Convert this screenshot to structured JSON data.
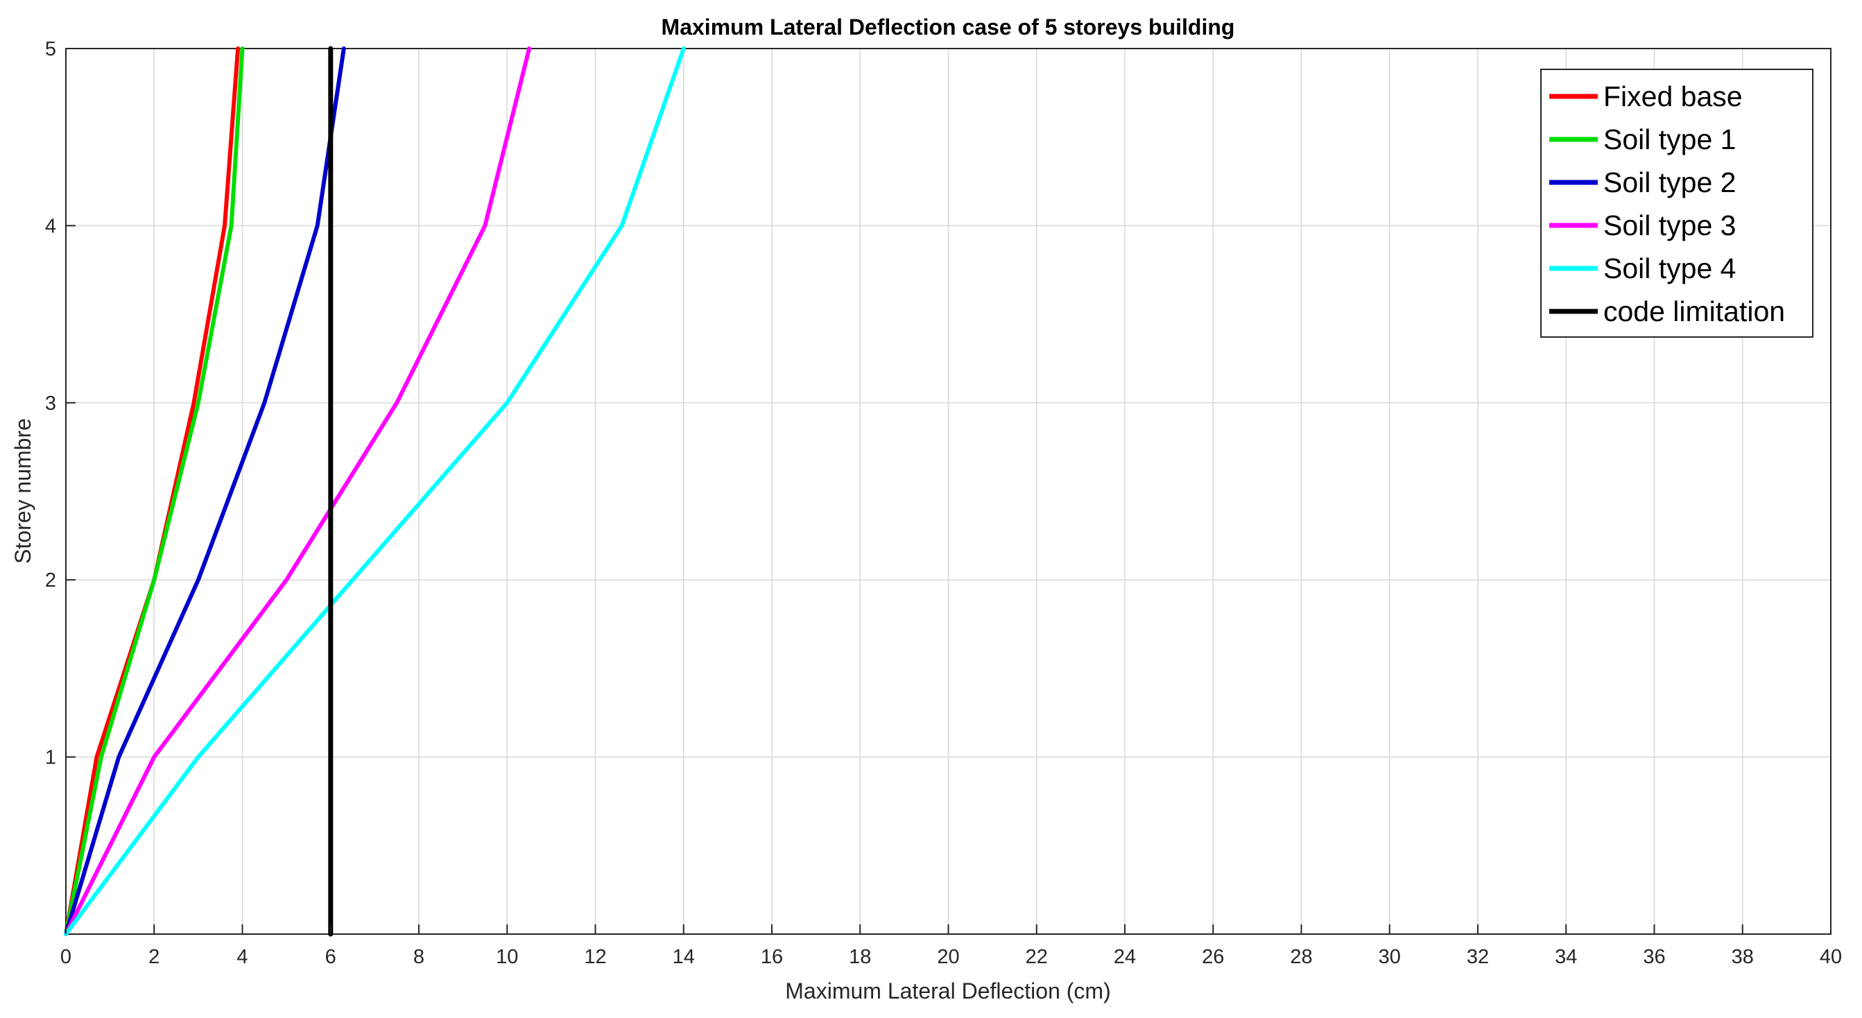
{
  "chart_data": {
    "type": "line",
    "title": "Maximum Lateral Deflection case of 5 storeys building",
    "xlabel": "Maximum Lateral Deflection (cm)",
    "ylabel": "Storey numbre",
    "xlim": [
      0,
      40
    ],
    "ylim": [
      0,
      5
    ],
    "x_ticks": [
      0,
      2,
      4,
      6,
      8,
      10,
      12,
      14,
      16,
      18,
      20,
      22,
      24,
      26,
      28,
      30,
      32,
      34,
      36,
      38,
      40
    ],
    "y_ticks": [
      1,
      2,
      3,
      4,
      5
    ],
    "grid": true,
    "legend_position": "top-right",
    "series": [
      {
        "name": "Fixed base",
        "color": "#ff0000",
        "x": [
          0,
          0.7,
          2.0,
          2.9,
          3.6,
          3.9
        ],
        "y": [
          0,
          1,
          2,
          3,
          4,
          5
        ]
      },
      {
        "name": "Soil type 1",
        "color": "#00dd00",
        "x": [
          0,
          0.8,
          2.0,
          3.0,
          3.75,
          4.0
        ],
        "y": [
          0,
          1,
          2,
          3,
          4,
          5
        ]
      },
      {
        "name": "Soil type 2",
        "color": "#0000cc",
        "x": [
          0,
          1.2,
          3.0,
          4.5,
          5.7,
          6.3
        ],
        "y": [
          0,
          1,
          2,
          3,
          4,
          5
        ]
      },
      {
        "name": "Soil type 3",
        "color": "#ff00ff",
        "x": [
          0,
          2.0,
          5.0,
          7.5,
          9.5,
          10.5
        ],
        "y": [
          0,
          1,
          2,
          3,
          4,
          5
        ]
      },
      {
        "name": "Soil type 4",
        "color": "#00ffff",
        "x": [
          0,
          3.0,
          6.5,
          10.0,
          12.6,
          14.0
        ],
        "y": [
          0,
          1,
          2,
          3,
          4,
          5
        ]
      },
      {
        "name": "code limitation",
        "color": "#000000",
        "x": [
          6,
          6
        ],
        "y": [
          0,
          5
        ]
      }
    ]
  }
}
